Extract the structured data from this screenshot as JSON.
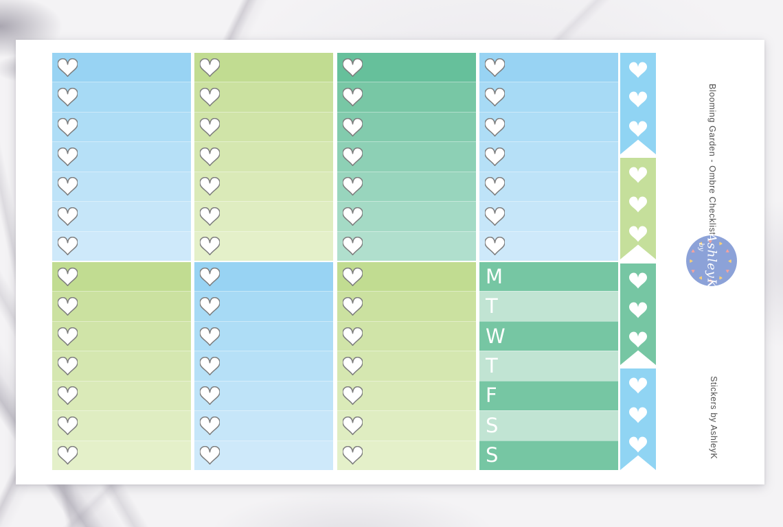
{
  "side_text": {
    "title": "Blooming Garden - Ombre Checklist",
    "credit": "Stickers by AshleyK",
    "color": "#4f4f4f"
  },
  "logo": {
    "prefix": "by",
    "name": "AshleyK",
    "circle_color": "#8ca2d8",
    "text_color": "#ffffff",
    "ring_heart_colors": [
      "#f2a3a0",
      "#f5cf7a"
    ]
  },
  "weekday_letters": [
    "M",
    "T",
    "W",
    "T",
    "F",
    "S",
    "S"
  ],
  "palettes": {
    "blue": [
      "#98d3f3",
      "#a7daf5",
      "#aeddf6",
      "#b6e0f7",
      "#bee3f8",
      "#c6e6f9",
      "#cee9fa"
    ],
    "green": [
      "#c1dc91",
      "#cbe1a0",
      "#d0e4a8",
      "#d5e7b0",
      "#daeab8",
      "#dfedc1",
      "#e4f0c9"
    ],
    "teal": [
      "#66c09b",
      "#78c7a5",
      "#82cbad",
      "#8dd0b5",
      "#98d5bd",
      "#a4dac5",
      "#b0dfcd"
    ],
    "weekday_dark": "#76c6a3",
    "weekday_light": "#c1e4d3",
    "flag_blue": "#90d4f3",
    "flag_green": "#c5df9b",
    "flag_teal": "#76c6a3",
    "heart_outline": "#7d7d7d",
    "heart_fill": "#ffffff"
  },
  "layout": {
    "top_boxes": [
      "blue",
      "green",
      "teal",
      "blue"
    ],
    "bottom_boxes": [
      "green",
      "blue",
      "green",
      "weekday"
    ],
    "flags": [
      "flag_blue",
      "flag_green",
      "flag_teal",
      "flag_blue"
    ],
    "rows_per_box": 7,
    "hearts_per_flag": 3
  }
}
